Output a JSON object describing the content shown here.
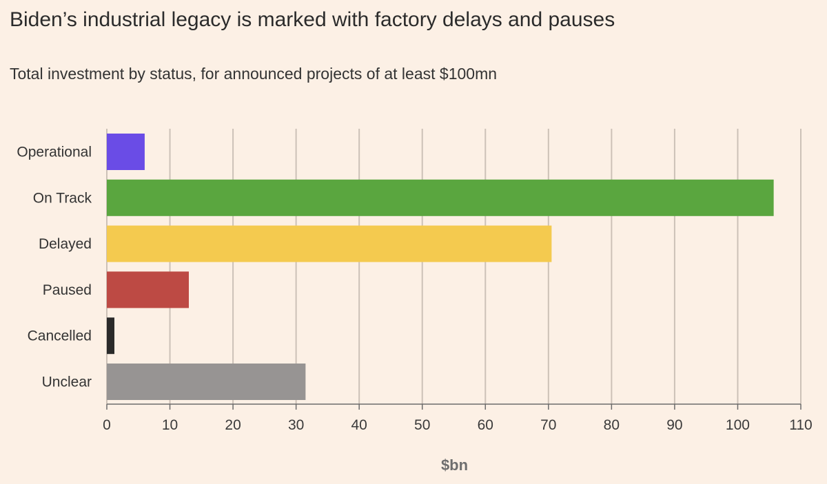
{
  "chart_data": {
    "type": "bar",
    "orientation": "horizontal",
    "title": "Biden’s industrial legacy is marked with factory delays and pauses",
    "subtitle": "Total investment by status, for announced projects of at least $100mn",
    "xlabel": "$bn",
    "ylabel": "",
    "categories": [
      "Operational",
      "On Track",
      "Delayed",
      "Paused",
      "Cancelled",
      "Unclear"
    ],
    "values": [
      6,
      105.7,
      70.5,
      13,
      1.2,
      31.5
    ],
    "colors": [
      "#6a4ce6",
      "#5aa63f",
      "#f4ca4f",
      "#bd4a44",
      "#2a2a2a",
      "#979493"
    ],
    "xlim": [
      0,
      110
    ],
    "xticks": [
      0,
      10,
      20,
      30,
      40,
      50,
      60,
      70,
      80,
      90,
      100,
      110
    ],
    "grid": "vertical",
    "legend": "none"
  }
}
